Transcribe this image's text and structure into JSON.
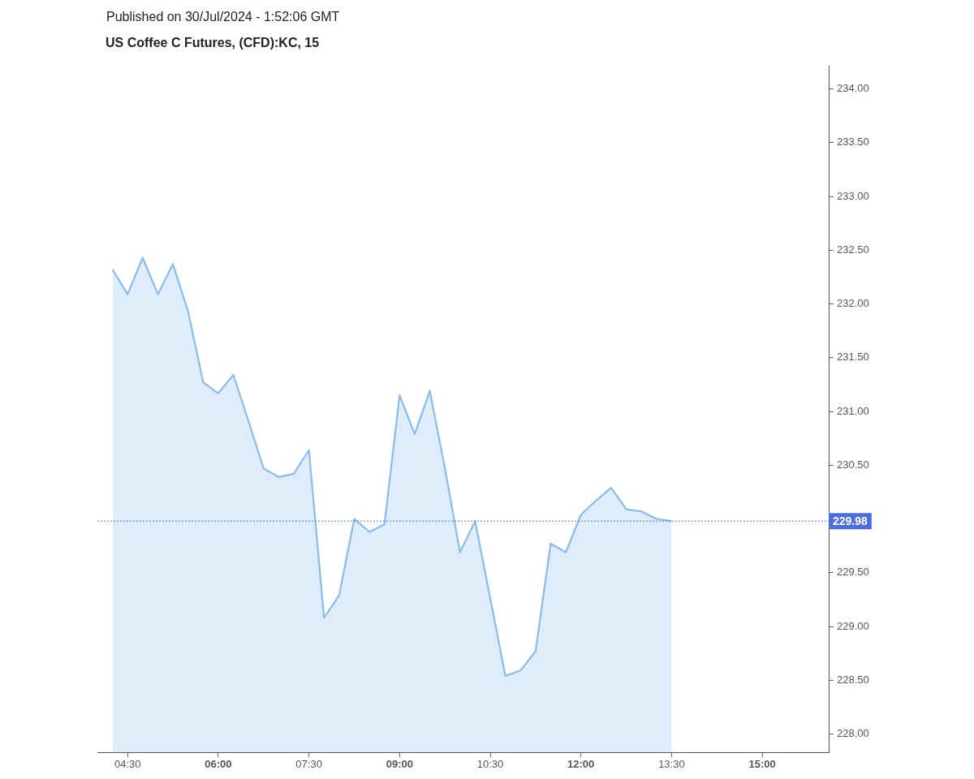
{
  "chart_data": {
    "type": "area",
    "title": "US Coffee C Futures, (CFD):KC, 15",
    "annotations": [
      "Published on 30/Jul/2024 - 1:52:06 GMT"
    ],
    "x": [
      4.25,
      4.5,
      4.75,
      5,
      5.25,
      5.5,
      5.75,
      6,
      6.25,
      6.5,
      6.75,
      7,
      7.25,
      7.5,
      7.75,
      8,
      8.25,
      8.5,
      8.75,
      9,
      9.25,
      9.5,
      9.75,
      10,
      10.25,
      10.5,
      10.75,
      11,
      11.25,
      11.5,
      11.75,
      12,
      12.25,
      12.5,
      12.75,
      13,
      13.25,
      13.5
    ],
    "values": [
      232.32,
      232.09,
      232.43,
      232.09,
      232.37,
      231.93,
      231.27,
      231.17,
      231.34,
      230.91,
      230.47,
      230.39,
      230.42,
      230.64,
      229.08,
      229.29,
      230.0,
      229.88,
      229.95,
      231.15,
      230.79,
      231.19,
      230.47,
      229.69,
      229.98,
      229.26,
      228.54,
      228.59,
      228.77,
      229.77,
      229.69,
      230.04,
      230.17,
      230.29,
      230.09,
      230.07,
      230.0,
      229.98
    ],
    "color": "#88bbee",
    "xlim": [
      4.0,
      16.1
    ],
    "xticks": [
      {
        "value": 4.5,
        "label": "04:30"
      },
      {
        "value": 6,
        "label": "06:00"
      },
      {
        "value": 7.5,
        "label": "07:30"
      },
      {
        "value": 9,
        "label": "09:00"
      },
      {
        "value": 10.5,
        "label": "10:30"
      },
      {
        "value": 12,
        "label": "12:00"
      },
      {
        "value": 13.5,
        "label": "13:30"
      },
      {
        "value": 15,
        "label": "15:00"
      }
    ],
    "ylim": [
      227.83,
      234.21
    ],
    "yticks": [
      {
        "value": 228,
        "label": "228.00"
      },
      {
        "value": 228.5,
        "label": "228.50"
      },
      {
        "value": 229,
        "label": "229.00"
      },
      {
        "value": 229.5,
        "label": "229.50"
      },
      {
        "value": 230.5,
        "label": "230.50"
      },
      {
        "value": 231,
        "label": "231.00"
      },
      {
        "value": 231.5,
        "label": "231.50"
      },
      {
        "value": 232,
        "label": "232.00"
      },
      {
        "value": 232.5,
        "label": "232.50"
      },
      {
        "value": 233,
        "label": "233.00"
      },
      {
        "value": 233.5,
        "label": "233.50"
      },
      {
        "value": 234,
        "label": "234.00"
      }
    ],
    "ref_lines": [
      {
        "axis": "y",
        "value": 229.98,
        "label": "229.98",
        "color": "#4a6ee0",
        "line_style": "dotted"
      }
    ]
  }
}
